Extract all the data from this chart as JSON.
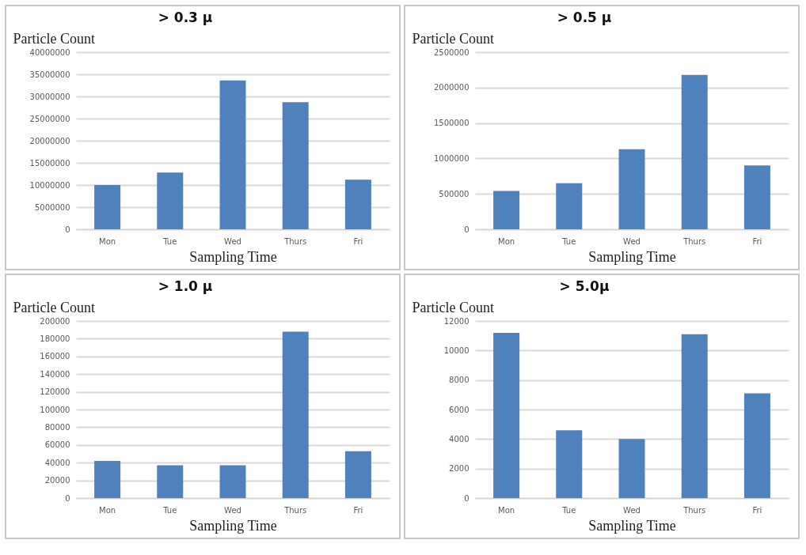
{
  "chart_data": [
    {
      "type": "bar",
      "title": "> 0.3 μ",
      "ylabel": "Particle Count",
      "xlabel": "Sampling Time",
      "categories": [
        "Mon",
        "Tue",
        "Wed",
        "Thurs",
        "Fri"
      ],
      "values": [
        10000000,
        12800000,
        33600000,
        28700000,
        11200000
      ],
      "color": "#4f81bd",
      "ylim": [
        0,
        40000000
      ],
      "yticks": [
        0,
        5000000,
        10000000,
        15000000,
        20000000,
        25000000,
        30000000,
        35000000,
        40000000
      ],
      "grid": "y"
    },
    {
      "type": "bar",
      "title": "> 0.5 μ",
      "ylabel": "Particle Count",
      "xlabel": "Sampling Time",
      "categories": [
        "Mon",
        "Tue",
        "Wed",
        "Thurs",
        "Fri"
      ],
      "values": [
        540000,
        650000,
        1130000,
        2180000,
        900000
      ],
      "color": "#4f81bd",
      "ylim": [
        0,
        2500000
      ],
      "yticks": [
        0,
        500000,
        1000000,
        1500000,
        2000000,
        2500000
      ],
      "grid": "y"
    },
    {
      "type": "bar",
      "title": "> 1.0 μ",
      "ylabel": "Particle Count",
      "xlabel": "Sampling Time",
      "categories": [
        "Mon",
        "Tue",
        "Wed",
        "Thurs",
        "Fri"
      ],
      "values": [
        42000,
        37000,
        37000,
        188000,
        53000
      ],
      "color": "#4f81bd",
      "ylim": [
        0,
        200000
      ],
      "yticks": [
        0,
        20000,
        40000,
        60000,
        80000,
        100000,
        120000,
        140000,
        160000,
        180000,
        200000
      ],
      "grid": "y"
    },
    {
      "type": "bar",
      "title": "> 5.0μ",
      "ylabel": "Particle Count",
      "xlabel": "Sampling Time",
      "categories": [
        "Mon",
        "Tue",
        "Wed",
        "Thurs",
        "Fri"
      ],
      "values": [
        11200,
        4600,
        4000,
        11100,
        7100
      ],
      "color": "#4f81bd",
      "ylim": [
        0,
        12000
      ],
      "yticks": [
        0,
        2000,
        4000,
        6000,
        8000,
        10000,
        12000
      ],
      "grid": "y"
    }
  ]
}
